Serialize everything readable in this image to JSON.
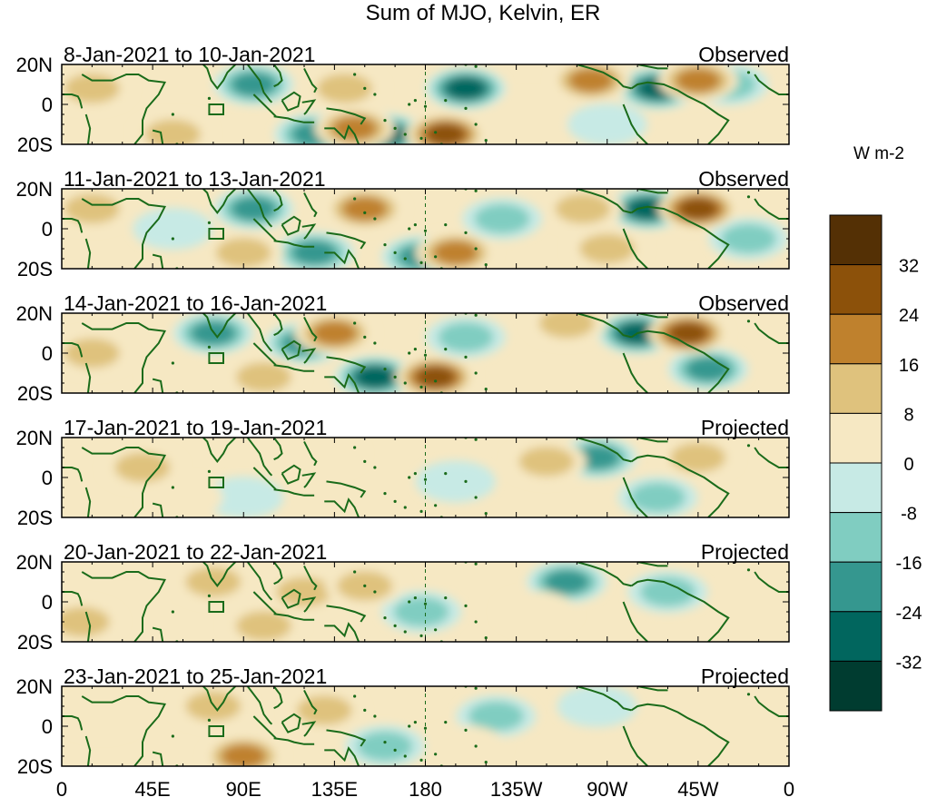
{
  "chart_data": {
    "type": "heatmap",
    "title": "Sum of MJO, Kelvin, ER",
    "units": "W m-2",
    "lat_ticks": [
      "20N",
      "0",
      "20S"
    ],
    "lon_ticks": [
      "0",
      "45E",
      "90E",
      "135E",
      "180",
      "135W",
      "90W",
      "45W",
      "0"
    ],
    "colorbar": {
      "labels": [
        "32",
        "24",
        "16",
        "8",
        "0",
        "-8",
        "-16",
        "-24",
        "-32"
      ],
      "colors": [
        "#543005",
        "#8c510a",
        "#bf812d",
        "#dfc27d",
        "#f6e8c3",
        "#c7eae5",
        "#80cdc1",
        "#35978f",
        "#01665e",
        "#003c30"
      ]
    },
    "panels": [
      {
        "date": "8-Jan-2021 to 10-Jan-2021",
        "status": "Observed",
        "blobs": [
          {
            "lon": 95,
            "lat": 10,
            "v": -24
          },
          {
            "lon": 125,
            "lat": -15,
            "v": -20
          },
          {
            "lon": 160,
            "lat": -15,
            "v": -32
          },
          {
            "lon": 200,
            "lat": 8,
            "v": -28
          },
          {
            "lon": 295,
            "lat": 8,
            "v": -32
          },
          {
            "lon": 330,
            "lat": 10,
            "v": -16
          },
          {
            "lon": 190,
            "lat": -15,
            "v": 30
          },
          {
            "lon": 145,
            "lat": -12,
            "v": 24
          },
          {
            "lon": 140,
            "lat": 8,
            "v": 16
          },
          {
            "lon": 262,
            "lat": 12,
            "v": 24
          },
          {
            "lon": 315,
            "lat": 12,
            "v": 26
          },
          {
            "lon": 55,
            "lat": -15,
            "v": 18
          },
          {
            "lon": 15,
            "lat": 8,
            "v": 12
          },
          {
            "lon": 232,
            "lat": -5,
            "v": 10
          },
          {
            "lon": 270,
            "lat": -10,
            "v": -10
          }
        ]
      },
      {
        "date": "11-Jan-2021 to 13-Jan-2021",
        "status": "Observed",
        "blobs": [
          {
            "lon": 95,
            "lat": 10,
            "v": -26
          },
          {
            "lon": 125,
            "lat": -12,
            "v": -24
          },
          {
            "lon": 178,
            "lat": -14,
            "v": -20
          },
          {
            "lon": 218,
            "lat": 5,
            "v": -18
          },
          {
            "lon": 290,
            "lat": 10,
            "v": -28
          },
          {
            "lon": 340,
            "lat": -5,
            "v": -12
          },
          {
            "lon": 150,
            "lat": 10,
            "v": 22
          },
          {
            "lon": 195,
            "lat": -12,
            "v": 26
          },
          {
            "lon": 315,
            "lat": 10,
            "v": 28
          },
          {
            "lon": 90,
            "lat": -12,
            "v": 18
          },
          {
            "lon": 15,
            "lat": 10,
            "v": 14
          },
          {
            "lon": 258,
            "lat": 10,
            "v": 16
          },
          {
            "lon": 270,
            "lat": -10,
            "v": 14
          },
          {
            "lon": 55,
            "lat": 0,
            "v": -10
          }
        ]
      },
      {
        "date": "14-Jan-2021 to 16-Jan-2021",
        "status": "Observed",
        "blobs": [
          {
            "lon": 75,
            "lat": 10,
            "v": -22
          },
          {
            "lon": 120,
            "lat": 5,
            "v": -20
          },
          {
            "lon": 155,
            "lat": -12,
            "v": -30
          },
          {
            "lon": 200,
            "lat": 8,
            "v": -12
          },
          {
            "lon": 285,
            "lat": 10,
            "v": -30
          },
          {
            "lon": 320,
            "lat": -8,
            "v": -26
          },
          {
            "lon": 185,
            "lat": -12,
            "v": 30
          },
          {
            "lon": 135,
            "lat": 10,
            "v": 20
          },
          {
            "lon": 310,
            "lat": 10,
            "v": 28
          },
          {
            "lon": 100,
            "lat": -12,
            "v": 16
          },
          {
            "lon": 15,
            "lat": 0,
            "v": 12
          },
          {
            "lon": 250,
            "lat": 15,
            "v": 18
          },
          {
            "lon": 60,
            "lat": -12,
            "v": 10
          }
        ]
      },
      {
        "date": "17-Jan-2021 to 19-Jan-2021",
        "status": "Projected",
        "blobs": [
          {
            "lon": 265,
            "lat": 10,
            "v": -22
          },
          {
            "lon": 195,
            "lat": -2,
            "v": -10
          },
          {
            "lon": 90,
            "lat": -10,
            "v": -10
          },
          {
            "lon": 315,
            "lat": 10,
            "v": 18
          },
          {
            "lon": 240,
            "lat": 8,
            "v": 12
          },
          {
            "lon": 130,
            "lat": 12,
            "v": 10
          },
          {
            "lon": 40,
            "lat": 5,
            "v": 12
          },
          {
            "lon": 60,
            "lat": -10,
            "v": 10
          },
          {
            "lon": 295,
            "lat": -10,
            "v": -12
          }
        ]
      },
      {
        "date": "20-Jan-2021 to 22-Jan-2021",
        "status": "Projected",
        "blobs": [
          {
            "lon": 178,
            "lat": -5,
            "v": -16
          },
          {
            "lon": 250,
            "lat": 10,
            "v": -20
          },
          {
            "lon": 300,
            "lat": 5,
            "v": -12
          },
          {
            "lon": 75,
            "lat": 10,
            "v": 14
          },
          {
            "lon": 120,
            "lat": 5,
            "v": 16
          },
          {
            "lon": 100,
            "lat": -12,
            "v": 18
          },
          {
            "lon": 150,
            "lat": 8,
            "v": 14
          },
          {
            "lon": 235,
            "lat": -5,
            "v": 10
          },
          {
            "lon": 10,
            "lat": -10,
            "v": 12
          }
        ]
      },
      {
        "date": "23-Jan-2021 to 25-Jan-2021",
        "status": "Projected",
        "blobs": [
          {
            "lon": 160,
            "lat": -10,
            "v": -16
          },
          {
            "lon": 215,
            "lat": 5,
            "v": -12
          },
          {
            "lon": 265,
            "lat": 10,
            "v": -10
          },
          {
            "lon": 75,
            "lat": 10,
            "v": 18
          },
          {
            "lon": 130,
            "lat": 8,
            "v": 14
          },
          {
            "lon": 90,
            "lat": -15,
            "v": 20
          },
          {
            "lon": 200,
            "lat": -10,
            "v": 10
          },
          {
            "lon": 20,
            "lat": 5,
            "v": 10
          }
        ]
      }
    ]
  }
}
